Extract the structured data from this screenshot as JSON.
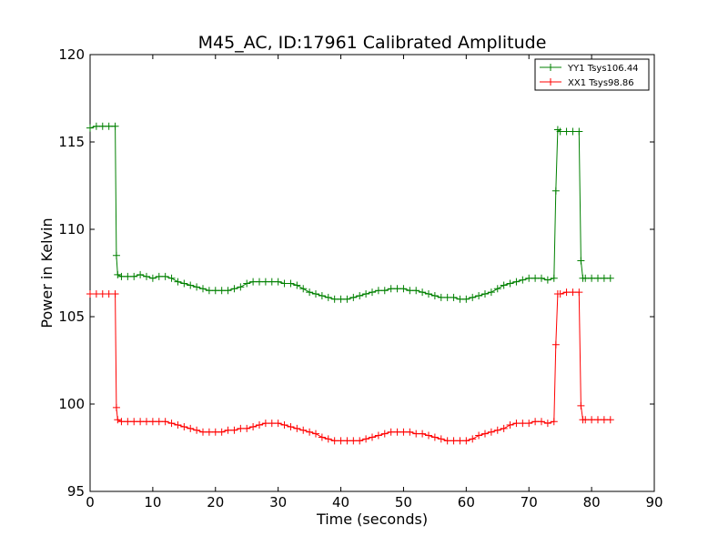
{
  "chart_data": {
    "type": "line",
    "title": "M45_AC, ID:17961 Calibrated Amplitude",
    "xlabel": "Time (seconds)",
    "ylabel": "Power in Kelvin",
    "xlim": [
      0,
      90
    ],
    "ylim": [
      95,
      120
    ],
    "xticks": [
      "0",
      "10",
      "20",
      "30",
      "40",
      "50",
      "60",
      "70",
      "80",
      "90"
    ],
    "yticks": [
      "95",
      "100",
      "105",
      "110",
      "115",
      "120"
    ],
    "grid": false,
    "legend_position": "top-right",
    "marker": "plus",
    "series": [
      {
        "name": "YY1 Tsys106.44",
        "color": "#008000",
        "x": [
          0,
          1,
          2,
          3,
          4,
          4.2,
          4.4,
          5,
          6,
          7,
          8,
          9,
          10,
          11,
          12,
          13,
          14,
          15,
          16,
          17,
          18,
          19,
          20,
          21,
          22,
          23,
          24,
          25,
          26,
          27,
          28,
          29,
          30,
          31,
          32,
          33,
          34,
          35,
          36,
          37,
          38,
          39,
          40,
          41,
          42,
          43,
          44,
          45,
          46,
          47,
          48,
          49,
          50,
          51,
          52,
          53,
          54,
          55,
          56,
          57,
          58,
          59,
          60,
          61,
          62,
          63,
          64,
          65,
          66,
          67,
          68,
          69,
          70,
          71,
          72,
          73,
          74,
          74.3,
          74.6,
          75,
          76,
          77,
          78,
          78.3,
          78.6,
          79,
          80,
          81,
          82,
          83
        ],
        "y": [
          115.8,
          115.9,
          115.9,
          115.9,
          115.9,
          108.5,
          107.4,
          107.3,
          107.3,
          107.3,
          107.4,
          107.3,
          107.2,
          107.3,
          107.3,
          107.2,
          107.0,
          106.9,
          106.8,
          106.7,
          106.6,
          106.5,
          106.5,
          106.5,
          106.5,
          106.6,
          106.7,
          106.9,
          107.0,
          107.0,
          107.0,
          107.0,
          107.0,
          106.9,
          106.9,
          106.8,
          106.6,
          106.4,
          106.3,
          106.2,
          106.1,
          106.0,
          106.0,
          106.0,
          106.1,
          106.2,
          106.3,
          106.4,
          106.5,
          106.5,
          106.6,
          106.6,
          106.6,
          106.5,
          106.5,
          106.4,
          106.3,
          106.2,
          106.1,
          106.1,
          106.1,
          106.0,
          106.0,
          106.1,
          106.2,
          106.3,
          106.4,
          106.6,
          106.8,
          106.9,
          107.0,
          107.1,
          107.2,
          107.2,
          107.2,
          107.1,
          107.2,
          112.2,
          115.7,
          115.6,
          115.6,
          115.6,
          115.6,
          108.2,
          107.2,
          107.2,
          107.2,
          107.2,
          107.2,
          107.2
        ]
      },
      {
        "name": "XX1 Tsys98.86",
        "color": "#ff0000",
        "x": [
          0,
          1,
          2,
          3,
          4,
          4.2,
          4.4,
          5,
          6,
          7,
          8,
          9,
          10,
          11,
          12,
          13,
          14,
          15,
          16,
          17,
          18,
          19,
          20,
          21,
          22,
          23,
          24,
          25,
          26,
          27,
          28,
          29,
          30,
          31,
          32,
          33,
          34,
          35,
          36,
          37,
          38,
          39,
          40,
          41,
          42,
          43,
          44,
          45,
          46,
          47,
          48,
          49,
          50,
          51,
          52,
          53,
          54,
          55,
          56,
          57,
          58,
          59,
          60,
          61,
          62,
          63,
          64,
          65,
          66,
          67,
          68,
          69,
          70,
          71,
          72,
          73,
          74,
          74.3,
          74.6,
          75,
          76,
          77,
          78,
          78.3,
          78.6,
          79,
          80,
          81,
          82,
          83
        ],
        "y": [
          106.3,
          106.3,
          106.3,
          106.3,
          106.3,
          99.8,
          99.1,
          99.0,
          99.0,
          99.0,
          99.0,
          99.0,
          99.0,
          99.0,
          99.0,
          98.9,
          98.8,
          98.7,
          98.6,
          98.5,
          98.4,
          98.4,
          98.4,
          98.4,
          98.5,
          98.5,
          98.6,
          98.6,
          98.7,
          98.8,
          98.9,
          98.9,
          98.9,
          98.8,
          98.7,
          98.6,
          98.5,
          98.4,
          98.3,
          98.1,
          98.0,
          97.9,
          97.9,
          97.9,
          97.9,
          97.9,
          98.0,
          98.1,
          98.2,
          98.3,
          98.4,
          98.4,
          98.4,
          98.4,
          98.3,
          98.3,
          98.2,
          98.1,
          98.0,
          97.9,
          97.9,
          97.9,
          97.9,
          98.0,
          98.2,
          98.3,
          98.4,
          98.5,
          98.6,
          98.8,
          98.9,
          98.9,
          98.9,
          99.0,
          99.0,
          98.9,
          99.0,
          103.4,
          106.3,
          106.3,
          106.4,
          106.4,
          106.4,
          99.9,
          99.1,
          99.1,
          99.1,
          99.1,
          99.1,
          99.1
        ]
      }
    ]
  }
}
